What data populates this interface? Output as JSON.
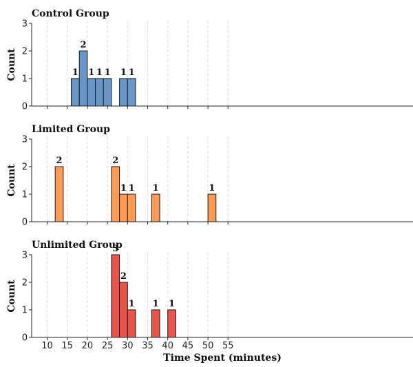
{
  "chart_data": {
    "type": "bar",
    "xlabel": "Time Spent (minutes)",
    "x_ticks": [
      10,
      15,
      20,
      25,
      30,
      35,
      40,
      45,
      50,
      55
    ],
    "xlim": [
      8,
      55
    ],
    "grid": "vertical dashed",
    "panels": [
      {
        "title": "Control Group",
        "ylabel": "Count",
        "ylim": [
          0,
          3
        ],
        "y_ticks": [
          0,
          1,
          2,
          3
        ],
        "color": "#6897c6",
        "bins": [
          {
            "start": 16,
            "end": 18,
            "count": 1
          },
          {
            "start": 18,
            "end": 20,
            "count": 2
          },
          {
            "start": 20,
            "end": 22,
            "count": 1
          },
          {
            "start": 22,
            "end": 24,
            "count": 1
          },
          {
            "start": 24,
            "end": 26,
            "count": 1
          },
          {
            "start": 28,
            "end": 30,
            "count": 1
          },
          {
            "start": 30,
            "end": 32,
            "count": 1
          }
        ]
      },
      {
        "title": "Limited Group",
        "ylabel": "Count",
        "ylim": [
          0,
          3
        ],
        "y_ticks": [
          0,
          1,
          2,
          3
        ],
        "color": "#fd9a53",
        "bins": [
          {
            "start": 12,
            "end": 14,
            "count": 2
          },
          {
            "start": 26,
            "end": 28,
            "count": 2
          },
          {
            "start": 28,
            "end": 30,
            "count": 1
          },
          {
            "start": 30,
            "end": 32,
            "count": 1
          },
          {
            "start": 36,
            "end": 38,
            "count": 1
          },
          {
            "start": 50,
            "end": 52,
            "count": 1
          }
        ]
      },
      {
        "title": "Unlimited Group",
        "ylabel": "Count",
        "ylim": [
          0,
          3
        ],
        "y_ticks": [
          0,
          1,
          2,
          3
        ],
        "color": "#e5554a",
        "bins": [
          {
            "start": 26,
            "end": 28,
            "count": 3
          },
          {
            "start": 28,
            "end": 30,
            "count": 2
          },
          {
            "start": 30,
            "end": 32,
            "count": 1
          },
          {
            "start": 36,
            "end": 38,
            "count": 1
          },
          {
            "start": 40,
            "end": 42,
            "count": 1
          }
        ]
      }
    ]
  }
}
